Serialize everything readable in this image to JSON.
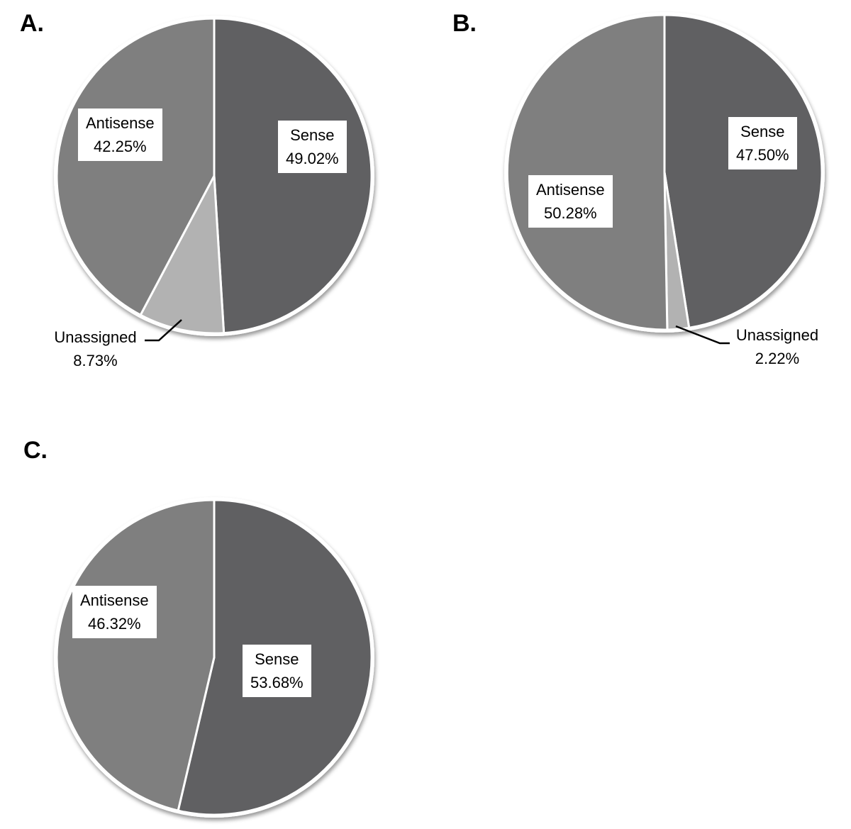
{
  "figure": {
    "background": "#ffffff",
    "colors": {
      "sense": "#606062",
      "antisense": "#7f7f7f",
      "unassigned": "#b2b2b2",
      "rim": "#ffffff",
      "slice_border": "#ffffff",
      "leader_line": "#000000",
      "label_box_bg": "#ffffff",
      "text": "#000000"
    }
  },
  "chart_data": [
    {
      "id": "A",
      "panel_label": "A.",
      "type": "pie",
      "start_angle_deg": 0,
      "direction": "clockwise",
      "legend_position": "none",
      "slices": [
        {
          "name": "Sense",
          "value_pct": 49.02,
          "pct_label": "49.02%",
          "color_key": "sense",
          "label_style": "inside-box"
        },
        {
          "name": "Unassigned",
          "value_pct": 8.73,
          "pct_label": "8.73%",
          "color_key": "unassigned",
          "label_style": "outside-callout"
        },
        {
          "name": "Antisense",
          "value_pct": 42.25,
          "pct_label": "42.25%",
          "color_key": "antisense",
          "label_style": "inside-box"
        }
      ]
    },
    {
      "id": "B",
      "panel_label": "B.",
      "type": "pie",
      "start_angle_deg": 0,
      "direction": "clockwise",
      "legend_position": "none",
      "slices": [
        {
          "name": "Sense",
          "value_pct": 47.5,
          "pct_label": "47.50%",
          "color_key": "sense",
          "label_style": "inside-box"
        },
        {
          "name": "Unassigned",
          "value_pct": 2.22,
          "pct_label": "2.22%",
          "color_key": "unassigned",
          "label_style": "outside-callout"
        },
        {
          "name": "Antisense",
          "value_pct": 50.28,
          "pct_label": "50.28%",
          "color_key": "antisense",
          "label_style": "inside-box"
        }
      ]
    },
    {
      "id": "C",
      "panel_label": "C.",
      "type": "pie",
      "start_angle_deg": 0,
      "direction": "clockwise",
      "legend_position": "none",
      "slices": [
        {
          "name": "Sense",
          "value_pct": 53.68,
          "pct_label": "53.68%",
          "color_key": "sense",
          "label_style": "inside-box"
        },
        {
          "name": "Antisense",
          "value_pct": 46.32,
          "pct_label": "46.32%",
          "color_key": "antisense",
          "label_style": "inside-box"
        }
      ]
    }
  ]
}
